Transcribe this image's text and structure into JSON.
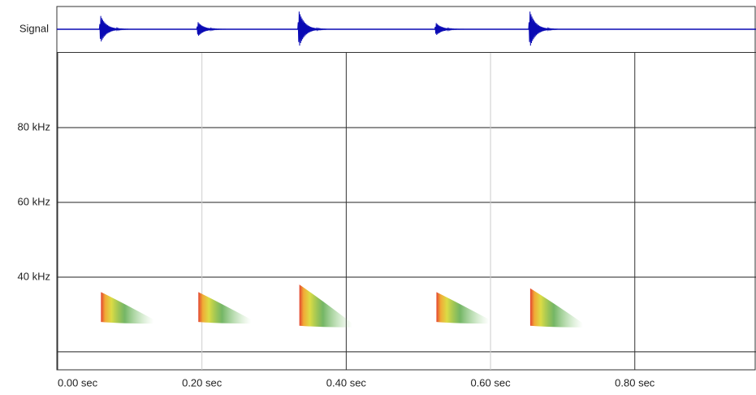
{
  "chart_data": {
    "type": "spectrogram",
    "signal_label": "Signal",
    "xlim": [
      0,
      0.968
    ],
    "xticks": [
      {
        "value": 0,
        "label": "0.00 sec"
      },
      {
        "value": 0.2,
        "label": "0.20 sec"
      },
      {
        "value": 0.4,
        "label": "0.40 sec"
      },
      {
        "value": 0.6,
        "label": "0.60 sec"
      },
      {
        "value": 0.8,
        "label": "0.80 sec"
      }
    ],
    "ylim": [
      15.2,
      100
    ],
    "yticks": [
      {
        "value": 20,
        "label": null
      },
      {
        "value": 40,
        "label": "40 kHz"
      },
      {
        "value": 60,
        "label": "60 kHz"
      },
      {
        "value": 80,
        "label": "80 kHz"
      }
    ],
    "signal_ylim": [
      -1,
      1
    ],
    "signal_color": "#0a0ab4",
    "calls": {
      "time": [
        0.06,
        0.195,
        0.335,
        0.525,
        0.655
      ],
      "amplitude": [
        0.75,
        0.4,
        1.0,
        0.35,
        1.0
      ],
      "fmin": [
        28,
        28,
        27,
        28,
        27
      ],
      "fmax": [
        36,
        36,
        38,
        36,
        37
      ]
    }
  }
}
